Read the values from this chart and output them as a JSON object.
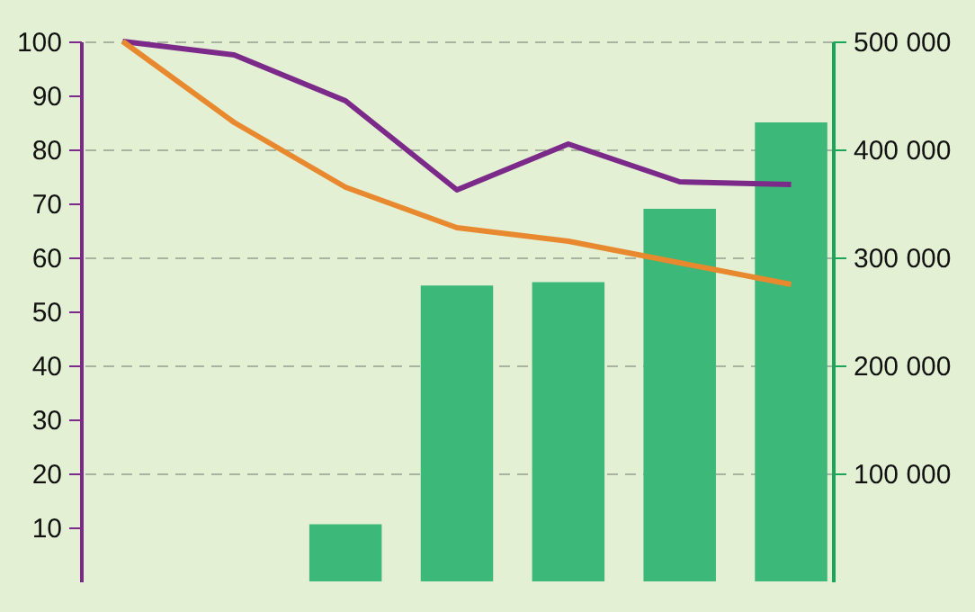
{
  "chart_data": {
    "type": "bar",
    "categories": [
      null,
      null,
      null,
      null,
      null,
      null,
      null
    ],
    "series": [
      {
        "axis": "y2",
        "color": "#3cb878",
        "values": [
          null,
          null,
          53000,
          274000,
          277000,
          345000,
          425000
        ]
      },
      {
        "type": "line",
        "axis": "y",
        "color": "#7b2a8a",
        "values": [
          100,
          97.5,
          89,
          72.5,
          81,
          74,
          73.5
        ]
      },
      {
        "type": "line",
        "axis": "y",
        "color": "#e8892f",
        "values": [
          100,
          85,
          73,
          65.5,
          63,
          59,
          55
        ]
      }
    ],
    "ylim": [
      0,
      100
    ],
    "yticks": [
      10,
      20,
      30,
      40,
      50,
      60,
      70,
      80,
      90,
      100
    ],
    "y2lim": [
      0,
      500000
    ],
    "y2ticks": [
      {
        "value": 100000,
        "label": "100 000"
      },
      {
        "value": 200000,
        "label": "200 000"
      },
      {
        "value": 300000,
        "label": "300 000"
      },
      {
        "value": 400000,
        "label": "400 000"
      },
      {
        "value": 500000,
        "label": "500 000"
      }
    ],
    "grid": "y2",
    "line_style": "solid",
    "marker": "none"
  }
}
